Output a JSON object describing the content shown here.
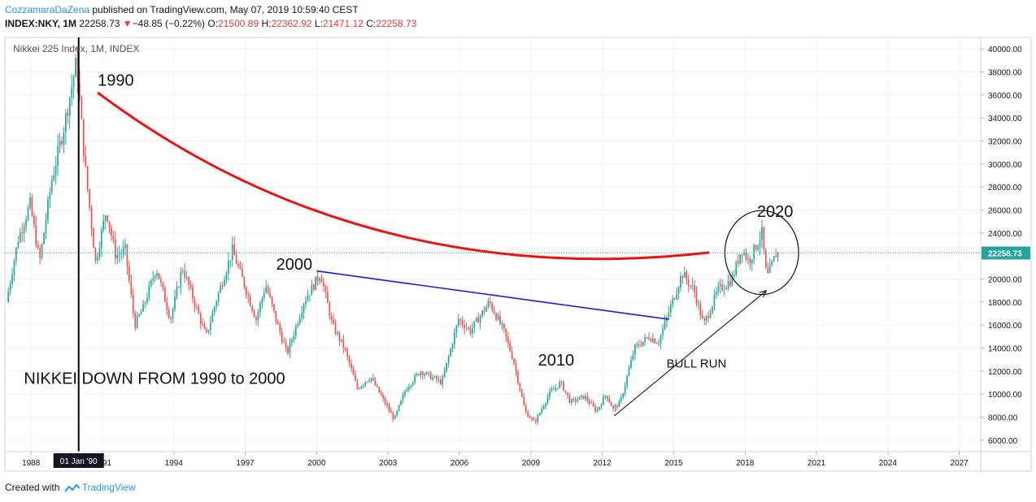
{
  "header": {
    "author": "CozzamaraDaZena",
    "published": " published on TradingView.com, May 07, 2019 10:59:40 CEST",
    "symbol": "INDEX:NKY, 1M",
    "last": "22258.73",
    "change": "−48.85 (−0.22%)",
    "o_label": "O:",
    "o_val": "21500.89",
    "h_label": "H:",
    "h_val": "22362.92",
    "l_label": "L:",
    "l_val": "21471.12",
    "c_label": "C:",
    "c_val": "22258.73"
  },
  "footer": {
    "created_with": "Created with",
    "brand": "TradingView"
  },
  "colors": {
    "up": "#26a69a",
    "down": "#ef5350",
    "cup_curve": "#ee1111",
    "trendline": "#1a1aee",
    "price_line": "#26a69a"
  },
  "chart_data": {
    "type": "candlestick",
    "title": "Nikkei 225 Index, 1M, INDEX",
    "x_ticks": [
      "1988",
      "1991",
      "1994",
      "1997",
      "2000",
      "2003",
      "2006",
      "2009",
      "2012",
      "2015",
      "2018",
      "2021",
      "2024",
      "2027"
    ],
    "x_highlight_label": "01 Jan '90",
    "x_highlight_year": 1990,
    "xlim": [
      1986.9,
      2027.9
    ],
    "y_ticks": [
      6000,
      8000,
      10000,
      12000,
      14000,
      16000,
      18000,
      20000,
      22000,
      24000,
      26000,
      28000,
      30000,
      32000,
      34000,
      36000,
      38000,
      40000
    ],
    "ylim": [
      5000,
      41000
    ],
    "last_price": 22258.73,
    "last_price_label": "22258.73",
    "series_anchors": [
      [
        1987.0,
        18000
      ],
      [
        1987.5,
        23500
      ],
      [
        1988.0,
        26500
      ],
      [
        1988.4,
        21500
      ],
      [
        1988.9,
        28500
      ],
      [
        1989.4,
        33000
      ],
      [
        1989.95,
        38900
      ],
      [
        1990.3,
        30000
      ],
      [
        1990.75,
        21500
      ],
      [
        1991.2,
        26000
      ],
      [
        1991.6,
        22000
      ],
      [
        1992.0,
        22500
      ],
      [
        1992.4,
        16000
      ],
      [
        1992.75,
        17500
      ],
      [
        1993.3,
        21000
      ],
      [
        1993.9,
        16500
      ],
      [
        1994.4,
        21000
      ],
      [
        1995.4,
        15000
      ],
      [
        1995.8,
        18000
      ],
      [
        1996.5,
        22500
      ],
      [
        1997.5,
        16500
      ],
      [
        1997.9,
        19500
      ],
      [
        1998.4,
        16000
      ],
      [
        1998.8,
        13500
      ],
      [
        1999.5,
        18000
      ],
      [
        2000.2,
        20500
      ],
      [
        2000.7,
        16000
      ],
      [
        2001.2,
        14000
      ],
      [
        2001.75,
        10500
      ],
      [
        2002.3,
        11500
      ],
      [
        2003.3,
        7800
      ],
      [
        2003.8,
        10500
      ],
      [
        2004.4,
        12000
      ],
      [
        2005.3,
        11000
      ],
      [
        2006.0,
        16500
      ],
      [
        2006.5,
        15500
      ],
      [
        2007.3,
        18000
      ],
      [
        2007.9,
        15500
      ],
      [
        2008.3,
        13000
      ],
      [
        2008.8,
        8500
      ],
      [
        2009.2,
        7500
      ],
      [
        2009.8,
        10000
      ],
      [
        2010.3,
        11000
      ],
      [
        2010.7,
        9300
      ],
      [
        2011.3,
        9800
      ],
      [
        2011.8,
        8500
      ],
      [
        2012.2,
        10000
      ],
      [
        2012.5,
        8700
      ],
      [
        2012.8,
        9300
      ],
      [
        2013.4,
        14000
      ],
      [
        2014.0,
        15000
      ],
      [
        2014.4,
        14500
      ],
      [
        2014.9,
        17500
      ],
      [
        2015.4,
        20500
      ],
      [
        2015.9,
        19000
      ],
      [
        2016.3,
        16000
      ],
      [
        2016.9,
        19000
      ],
      [
        2017.5,
        20000
      ],
      [
        2017.9,
        22700
      ],
      [
        2018.2,
        21500
      ],
      [
        2018.75,
        24000
      ],
      [
        2018.95,
        20000
      ],
      [
        2019.35,
        22258
      ]
    ],
    "annotations": [
      {
        "text": "1990",
        "x": 1990.8,
        "y": 36800
      },
      {
        "text": "2000",
        "x": 1998.3,
        "y": 20800
      },
      {
        "text": "2010",
        "x": 2009.3,
        "y": 12500
      },
      {
        "text": "2020",
        "x": 2018.5,
        "y": 25400
      },
      {
        "text": "NIKKEI DOWN FROM 1990 to 2000",
        "x": 1987.7,
        "y": 10900
      },
      {
        "text": "BULL RUN",
        "x": 2014.7,
        "y": 12300
      }
    ],
    "cup_curve": [
      [
        1990.8,
        36200
      ],
      [
        1999.0,
        23500
      ],
      [
        2008.0,
        20300
      ],
      [
        2016.5,
        22300
      ]
    ],
    "trendline": [
      [
        2000.0,
        20700
      ],
      [
        2014.8,
        16500
      ]
    ],
    "arrow": [
      [
        2012.5,
        8100
      ],
      [
        2018.9,
        19000
      ]
    ],
    "circle": {
      "cx": 2018.7,
      "cy": 22300,
      "rx": 1.55,
      "ry": 3650
    }
  }
}
